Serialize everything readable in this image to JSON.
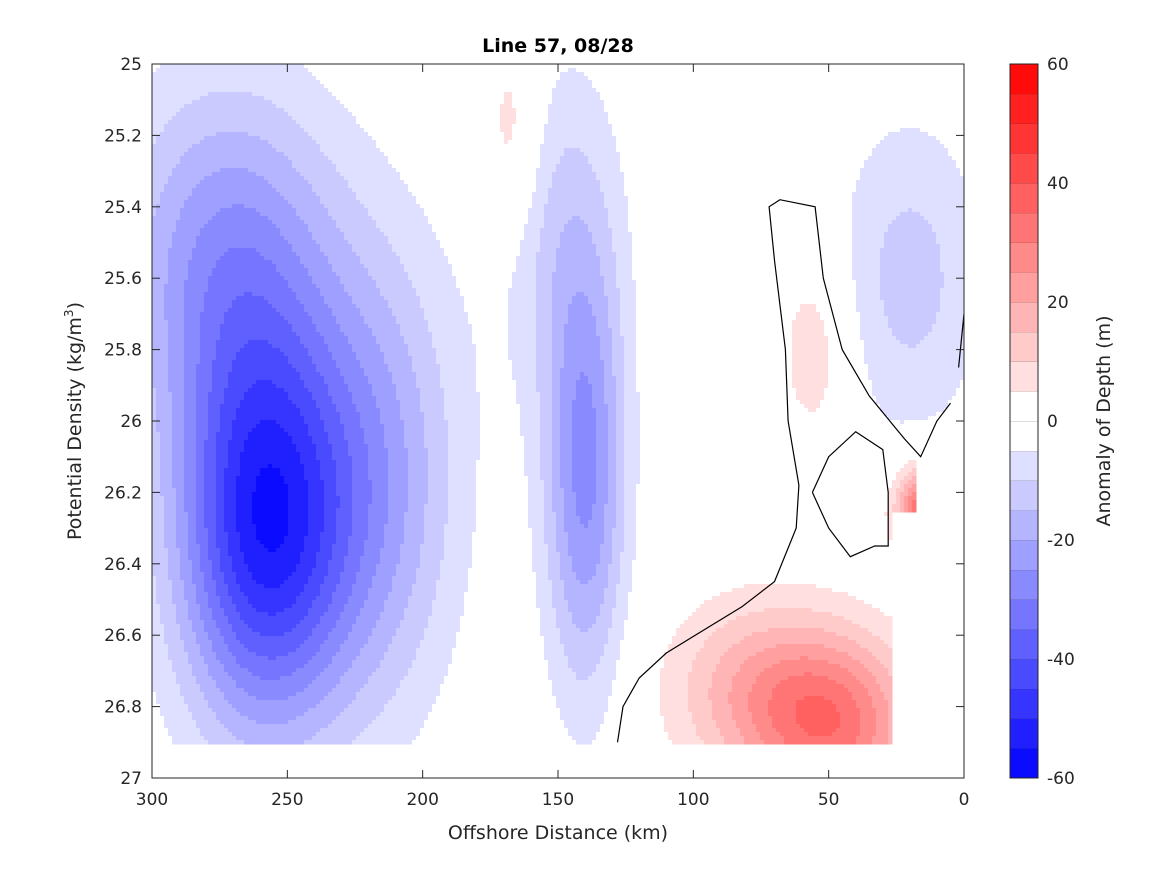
{
  "chart_data": {
    "type": "heatmap",
    "title": "Line 57, 08/28",
    "xlabel": "Offshore Distance (km)",
    "ylabel_prefix": "Potential Density (kg/m",
    "ylabel_sup": "3",
    "ylabel_suffix": ")",
    "xlim": [
      300,
      0
    ],
    "ylim": [
      25,
      27
    ],
    "x_reversed": true,
    "y_reversed": true,
    "xticks": [
      300,
      250,
      200,
      150,
      100,
      50,
      0
    ],
    "yticks": [
      25,
      25.2,
      25.4,
      25.6,
      25.8,
      26,
      26.2,
      26.4,
      26.6,
      26.8,
      27
    ],
    "colorbar": {
      "label": "Anomaly of Depth (m)",
      "range": [
        -60,
        60
      ],
      "step": 5,
      "ticks": [
        -60,
        -40,
        -20,
        0,
        20,
        40,
        60
      ],
      "colors": {
        "negative": "#0000ff",
        "zero": "#ffffff",
        "positive": "#ff0000"
      }
    },
    "contour_levels_m": [
      -55,
      -45,
      -40,
      -35,
      -30,
      -25,
      -20,
      -15,
      -10,
      -5,
      0,
      5,
      10,
      15,
      20,
      25,
      30,
      35,
      40
    ],
    "zero_contour_line": true,
    "data_extent": {
      "density_max": 26.9,
      "distance_min": 0,
      "distance_max": 300
    }
  }
}
